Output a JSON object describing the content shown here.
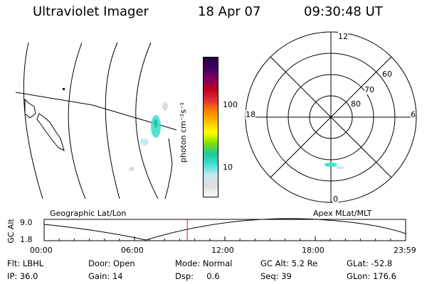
{
  "header": {
    "instrument": "Ultraviolet Imager",
    "date": "18 Apr 07",
    "time": "09:30:48 UT"
  },
  "colorbar": {
    "label": "photon cm⁻²s⁻¹",
    "ticks": [
      "100",
      "10"
    ],
    "colors": [
      "#ffffff",
      "#dddddd",
      "#c8e8f0",
      "#40e0d0",
      "#20c8a0",
      "#80e000",
      "#ffff00",
      "#ffc000",
      "#ff8000",
      "#e03030",
      "#c00020",
      "#800060",
      "#400060",
      "#200040"
    ]
  },
  "polar_plot": {
    "mlt_labels": {
      "top": "12",
      "bottom": "0",
      "left": "18",
      "right": "6"
    },
    "lat_labels": [
      "60",
      "70",
      "80"
    ]
  },
  "timeline": {
    "left_label": "Geographic Lat/Lon",
    "right_label": "Apex MLat/MLT",
    "y_axis_label": "GC Alt",
    "y_ticks": [
      "9.0",
      "1.8"
    ],
    "x_ticks": [
      "00:00",
      "06:00",
      "12:00",
      "18:00",
      "23:59"
    ],
    "current_time_fraction": 0.396
  },
  "info": {
    "filter": "Flt: LBHL",
    "door": "Door: Open",
    "mode": "Mode: Normal",
    "gc_alt": "GC Alt: 5.2 Re",
    "glat": "GLat: -52.8",
    "ip": "IP: 36.0",
    "gain": "Gain: 14",
    "dsp": "Dsp:     0.6",
    "seq": "Seq: 39",
    "glon": "GLon: 176.6"
  }
}
